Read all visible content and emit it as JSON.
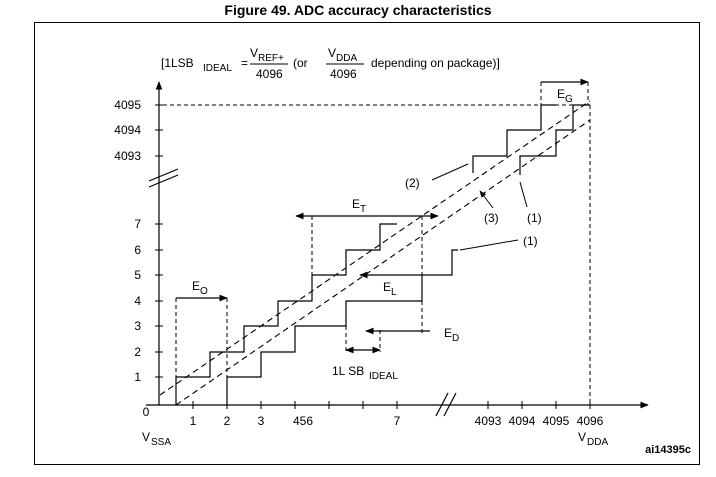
{
  "figure_title": "Figure 49. ADC accuracy characteristics",
  "formula": {
    "open": "[1LSB",
    "ideal_sub": "IDEAL",
    "eq": "=",
    "num1_v": "V",
    "num1_sub": "REF+",
    "den1": "4096",
    "or": "(or",
    "num2_v": "V",
    "num2_sub": "DDA",
    "den2": "4096",
    "close": "depending on package)]"
  },
  "y_axis": {
    "top_labels": [
      "4095",
      "4094",
      "4093"
    ],
    "labels": [
      "7",
      "6",
      "5",
      "4",
      "3",
      "2",
      "1"
    ]
  },
  "x_axis": {
    "origin": "0",
    "labels": [
      "1",
      "2",
      "3",
      "456",
      "7",
      "4093",
      "4094",
      "4095",
      "4096"
    ],
    "vssa_v": "V",
    "vssa_sub": "SSA",
    "vdda_v": "V",
    "vdda_sub": "DDA"
  },
  "errors": {
    "eo_main": "E",
    "eo_sub": "O",
    "et_main": "E",
    "et_sub": "T",
    "el_main": "E",
    "el_sub": "L",
    "ed_main": "E",
    "ed_sub": "D",
    "eg_main": "E",
    "eg_sub": "G"
  },
  "lsb_label_main": "1L SB",
  "lsb_label_sub": "IDEAL",
  "curve_refs": [
    "(1)",
    "(2)",
    "(3)",
    "(1)"
  ],
  "doc_ref": "ai14395c"
}
